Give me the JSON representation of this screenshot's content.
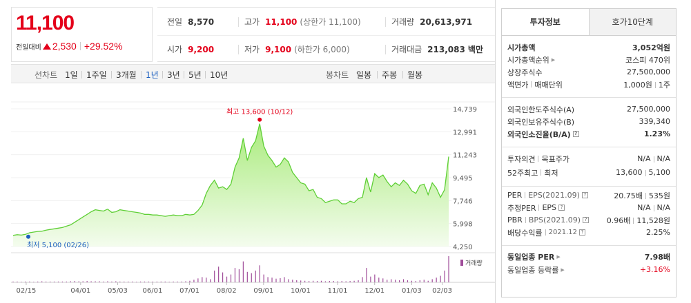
{
  "price": {
    "current": "11,100",
    "change_label": "전일대비",
    "change": "2,530",
    "change_pct": "+29.52%"
  },
  "summary": {
    "prev_close": {
      "label": "전일",
      "value": "8,570"
    },
    "high": {
      "label": "고가",
      "value": "11,100",
      "note": "(상한가 11,100)"
    },
    "volume": {
      "label": "거래량",
      "value": "20,613,971"
    },
    "open": {
      "label": "시가",
      "value": "9,200"
    },
    "low": {
      "label": "저가",
      "value": "9,100",
      "note": "(하한가 6,000)"
    },
    "amount": {
      "label": "거래대금",
      "value": "213,083",
      "unit": "백만"
    }
  },
  "period_bar": {
    "line_label": "선차트",
    "line_periods": [
      "1일",
      "1주일",
      "3개월",
      "1년",
      "3년",
      "5년",
      "10년"
    ],
    "active_period": "1년",
    "candle_label": "봉차트",
    "candle_periods": [
      "일봉",
      "주봉",
      "월봉"
    ]
  },
  "colors": {
    "up": "#e4001a",
    "down": "#1c5fbf",
    "line": "#5fcf36",
    "area": "#c9f2a8"
  },
  "chart_data": {
    "type": "area",
    "y_ticks": [
      "14,739",
      "12,991",
      "11,243",
      "9,495",
      "7,746",
      "5,998",
      "4,250"
    ],
    "ylim": [
      4250,
      14739
    ],
    "x_ticks": [
      "02/15",
      "04/01",
      "05/03",
      "06/01",
      "07/01",
      "08/02",
      "09/01",
      "10/01",
      "11/01",
      "12/01",
      "01/03",
      "02/03"
    ],
    "high_annotation": "최고 13,600 (10/12)",
    "low_annotation": "최저 5,100 (02/26)",
    "volume_legend": "거래량",
    "series": [
      {
        "values": [
          5100,
          5150,
          5120,
          5180,
          5300,
          5350,
          5400,
          5420,
          5500,
          5550,
          5600,
          5650,
          5700,
          5800,
          5900,
          6100,
          6300,
          6500,
          6700,
          6900,
          7050,
          7000,
          6950,
          7100,
          6850,
          6900,
          7050,
          7000,
          6950,
          6900,
          6850,
          6800,
          6700,
          6700,
          6650,
          6650,
          6600,
          6550,
          6600,
          6650,
          6600,
          6600,
          6700,
          6650,
          6700,
          7000,
          7400,
          8300,
          8900,
          9300,
          8700,
          8800,
          8600,
          9000,
          10300,
          11000,
          12500,
          10800,
          11800,
          12300,
          13600,
          11900,
          11200,
          10800,
          10300,
          10500,
          11000,
          10700,
          9900,
          9500,
          9100,
          9000,
          8500,
          8600,
          8000,
          7900,
          7600,
          7700,
          7800,
          7800,
          7500,
          7500,
          7700,
          7600,
          7900,
          8000,
          9500,
          8400,
          9800,
          9500,
          9700,
          9200,
          8800,
          9100,
          8900,
          9300,
          9000,
          8500,
          8300,
          8900,
          9000,
          8200,
          9100,
          8700,
          8000,
          8570,
          11100
        ]
      }
    ],
    "volume": [
      3,
      3,
      2,
      3,
      3,
      2,
      3,
      4,
      3,
      3,
      3,
      3,
      3,
      3,
      4,
      5,
      4,
      4,
      5,
      4,
      4,
      4,
      3,
      4,
      3,
      4,
      3,
      3,
      3,
      3,
      2,
      3,
      3,
      3,
      3,
      3,
      3,
      3,
      2,
      3,
      3,
      3,
      4,
      6,
      10,
      15,
      20,
      18,
      12,
      45,
      60,
      38,
      22,
      30,
      55,
      50,
      80,
      40,
      35,
      45,
      65,
      30,
      20,
      18,
      14,
      16,
      20,
      12,
      10,
      8,
      7,
      6,
      5,
      6,
      5,
      6,
      4,
      5,
      5,
      4,
      5,
      4,
      5,
      6,
      8,
      20,
      55,
      22,
      30,
      18,
      15,
      10,
      12,
      10,
      8,
      12,
      8,
      6,
      5,
      8,
      10,
      6,
      12,
      18,
      25,
      45,
      100
    ]
  },
  "right_panel": {
    "tabs": [
      "투자정보",
      "호가10단계"
    ],
    "active_tab": "투자정보",
    "rows": [
      {
        "k": "시가총액",
        "v": "3,052억원",
        "bold": true
      },
      {
        "k": "시가총액순위",
        "v": "코스피 470위"
      },
      {
        "k": "상장주식수",
        "v": "27,500,000"
      },
      {
        "k": "액면가",
        "k2": "매매단위",
        "v": "1,000원",
        "v2": "1주"
      },
      {
        "k": "외국인한도주식수(A)",
        "v": "27,500,000"
      },
      {
        "k": "외국인보유주식수(B)",
        "v": "339,340"
      },
      {
        "k": "외국인소진율(B/A)",
        "v": "1.23%",
        "bold": true
      },
      {
        "k": "투자의견",
        "k2": "목표주가",
        "v": "N/A",
        "v2": "N/A"
      },
      {
        "k": "52주최고",
        "k2": "최저",
        "v": "13,600",
        "v2": "5,100"
      },
      {
        "k": "PER",
        "k2": "EPS(2021.09)",
        "v": "20.75배",
        "v2": "535원"
      },
      {
        "k": "추정PER",
        "k2": "EPS",
        "v": "N/A",
        "v2": "N/A"
      },
      {
        "k": "PBR",
        "k2": "BPS(2021.09)",
        "v": "0.96배",
        "v2": "11,528원"
      },
      {
        "k": "배당수익률",
        "k2": "2021.12",
        "v": "2.25%"
      },
      {
        "k": "동일업종 PER",
        "v": "7.98배",
        "bold": true
      },
      {
        "k": "동일업종 등락률",
        "v": "+3.16%",
        "red": true
      }
    ]
  }
}
